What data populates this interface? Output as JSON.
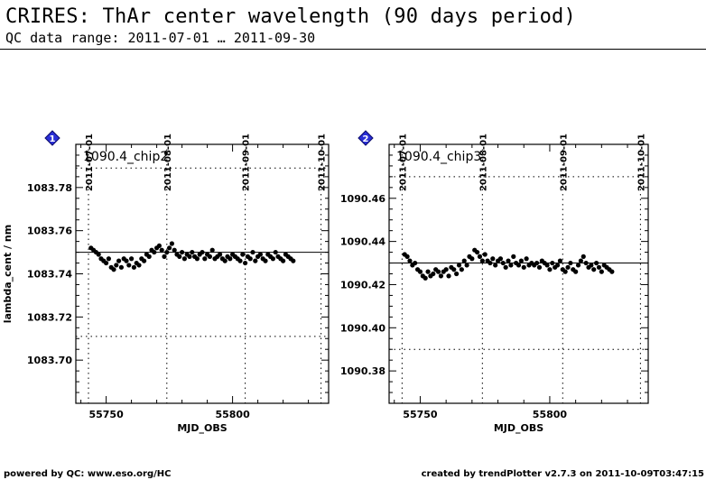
{
  "header": {
    "title": "CRIRES: ThAr center wavelength (90 days period)",
    "subtitle": "QC data range: 2011-07-01 … 2011-09-30"
  },
  "footer": {
    "left": "powered by QC: www.eso.org/HC",
    "right": "created by trendPlotter v2.7.3 on 2011-10-09T03:47:15"
  },
  "chart_data": [
    {
      "type": "scatter",
      "badge": "1",
      "panel_label": "1090.4_chip2",
      "xlabel": "MJD_OBS",
      "ylabel": "lambda_cent / nm",
      "xlim": [
        55738,
        55838
      ],
      "ylim": [
        1083.68,
        1083.8
      ],
      "xticks": [
        55750,
        55800
      ],
      "yticks": [
        1083.7,
        1083.72,
        1083.74,
        1083.76,
        1083.78
      ],
      "ytick_labels": [
        "1083.70",
        "1083.72",
        "1083.74",
        "1083.76",
        "1083.78"
      ],
      "date_ticks": [
        {
          "mjd": 55743,
          "label": "2011-07-01"
        },
        {
          "mjd": 55774,
          "label": "2011-08-01"
        },
        {
          "mjd": 55805,
          "label": "2011-09-01"
        },
        {
          "mjd": 55835,
          "label": "2011-10-01"
        }
      ],
      "ref_line": 1083.75,
      "dotted_lines": [
        1083.789,
        1083.711
      ],
      "x": [
        55744,
        55745,
        55746,
        55747,
        55748,
        55749,
        55750,
        55751,
        55752,
        55753,
        55754,
        55755,
        55756,
        55757,
        55758,
        55759,
        55760,
        55761,
        55762,
        55763,
        55764,
        55765,
        55766,
        55767,
        55768,
        55769,
        55770,
        55771,
        55772,
        55773,
        55774,
        55775,
        55776,
        55777,
        55778,
        55779,
        55780,
        55781,
        55782,
        55783,
        55784,
        55785,
        55786,
        55787,
        55788,
        55789,
        55790,
        55791,
        55792,
        55793,
        55794,
        55795,
        55796,
        55797,
        55798,
        55799,
        55800,
        55801,
        55802,
        55803,
        55804,
        55805,
        55806,
        55807,
        55808,
        55809,
        55810,
        55811,
        55812,
        55813,
        55814,
        55815,
        55816,
        55817,
        55818,
        55819,
        55820,
        55821,
        55822,
        55823,
        55824
      ],
      "y": [
        1083.752,
        1083.751,
        1083.75,
        1083.749,
        1083.747,
        1083.746,
        1083.745,
        1083.747,
        1083.743,
        1083.742,
        1083.744,
        1083.746,
        1083.743,
        1083.747,
        1083.746,
        1083.744,
        1083.747,
        1083.743,
        1083.745,
        1083.744,
        1083.747,
        1083.746,
        1083.749,
        1083.748,
        1083.751,
        1083.75,
        1083.752,
        1083.753,
        1083.751,
        1083.748,
        1083.75,
        1083.752,
        1083.754,
        1083.751,
        1083.749,
        1083.748,
        1083.75,
        1083.747,
        1083.749,
        1083.748,
        1083.75,
        1083.748,
        1083.747,
        1083.749,
        1083.75,
        1083.747,
        1083.749,
        1083.748,
        1083.751,
        1083.747,
        1083.748,
        1083.749,
        1083.747,
        1083.746,
        1083.748,
        1083.747,
        1083.749,
        1083.748,
        1083.747,
        1083.746,
        1083.749,
        1083.745,
        1083.748,
        1083.747,
        1083.75,
        1083.746,
        1083.748,
        1083.749,
        1083.747,
        1083.746,
        1083.749,
        1083.748,
        1083.747,
        1083.75,
        1083.748,
        1083.747,
        1083.746,
        1083.749,
        1083.748,
        1083.747,
        1083.746
      ]
    },
    {
      "type": "scatter",
      "badge": "2",
      "panel_label": "1090.4_chip3",
      "xlabel": "MJD_OBS",
      "ylabel": "",
      "xlim": [
        55738,
        55838
      ],
      "ylim": [
        1090.365,
        1090.485
      ],
      "xticks": [
        55750,
        55800
      ],
      "yticks": [
        1090.38,
        1090.4,
        1090.42,
        1090.44,
        1090.46
      ],
      "ytick_labels": [
        "1090.38",
        "1090.40",
        "1090.42",
        "1090.44",
        "1090.46"
      ],
      "date_ticks": [
        {
          "mjd": 55743,
          "label": "2011-07-01"
        },
        {
          "mjd": 55774,
          "label": "2011-08-01"
        },
        {
          "mjd": 55805,
          "label": "2011-09-01"
        },
        {
          "mjd": 55835,
          "label": "2011-10-01"
        }
      ],
      "ref_line": 1090.43,
      "dotted_lines": [
        1090.47,
        1090.39
      ],
      "x": [
        55744,
        55745,
        55746,
        55747,
        55748,
        55749,
        55750,
        55751,
        55752,
        55753,
        55754,
        55755,
        55756,
        55757,
        55758,
        55759,
        55760,
        55761,
        55762,
        55763,
        55764,
        55765,
        55766,
        55767,
        55768,
        55769,
        55770,
        55771,
        55772,
        55773,
        55774,
        55775,
        55776,
        55777,
        55778,
        55779,
        55780,
        55781,
        55782,
        55783,
        55784,
        55785,
        55786,
        55787,
        55788,
        55789,
        55790,
        55791,
        55792,
        55793,
        55794,
        55795,
        55796,
        55797,
        55798,
        55799,
        55800,
        55801,
        55802,
        55803,
        55804,
        55805,
        55806,
        55807,
        55808,
        55809,
        55810,
        55811,
        55812,
        55813,
        55814,
        55815,
        55816,
        55817,
        55818,
        55819,
        55820,
        55821,
        55822,
        55823,
        55824
      ],
      "y": [
        1090.434,
        1090.433,
        1090.431,
        1090.429,
        1090.43,
        1090.427,
        1090.426,
        1090.424,
        1090.423,
        1090.426,
        1090.424,
        1090.425,
        1090.427,
        1090.426,
        1090.424,
        1090.426,
        1090.427,
        1090.424,
        1090.428,
        1090.427,
        1090.425,
        1090.429,
        1090.427,
        1090.431,
        1090.429,
        1090.433,
        1090.432,
        1090.436,
        1090.435,
        1090.433,
        1090.431,
        1090.434,
        1090.431,
        1090.43,
        1090.432,
        1090.429,
        1090.431,
        1090.432,
        1090.43,
        1090.428,
        1090.431,
        1090.429,
        1090.433,
        1090.43,
        1090.429,
        1090.431,
        1090.428,
        1090.432,
        1090.429,
        1090.43,
        1090.429,
        1090.43,
        1090.428,
        1090.431,
        1090.43,
        1090.429,
        1090.427,
        1090.43,
        1090.428,
        1090.429,
        1090.431,
        1090.427,
        1090.426,
        1090.428,
        1090.43,
        1090.427,
        1090.426,
        1090.429,
        1090.431,
        1090.433,
        1090.43,
        1090.428,
        1090.429,
        1090.427,
        1090.43,
        1090.428,
        1090.426,
        1090.429,
        1090.428,
        1090.427,
        1090.426
      ]
    }
  ]
}
